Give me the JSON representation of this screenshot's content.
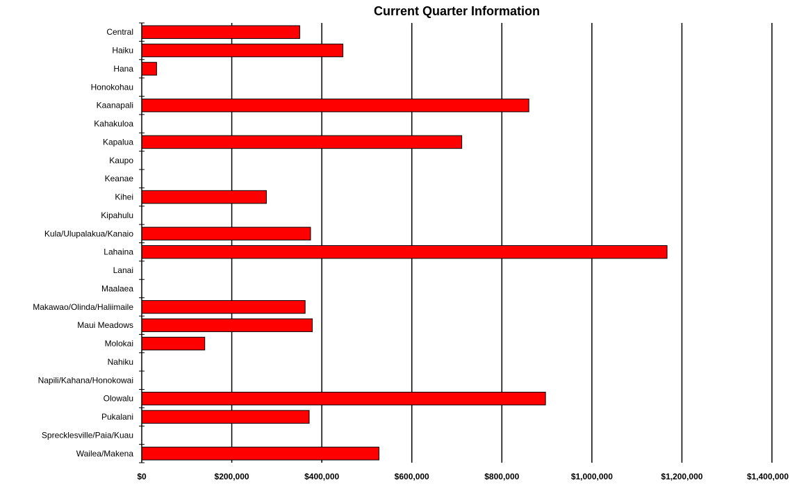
{
  "chart_data": {
    "type": "bar",
    "orientation": "horizontal",
    "title": "Current Quarter Information",
    "xlabel": "",
    "ylabel": "",
    "categories": [
      "Central",
      "Haiku",
      "Hana",
      "Honokohau",
      "Kaanapali",
      "Kahakuloa",
      "Kapalua",
      "Kaupo",
      "Keanae",
      "Kihei",
      "Kipahulu",
      "Kula/Ulupalakua/Kanaio",
      "Lahaina",
      "Lanai",
      "Maalaea",
      "Makawao/Olinda/Haliimaile",
      "Maui Meadows",
      "Molokai",
      "Nahiku",
      "Napili/Kahana/Honokowai",
      "Olowalu",
      "Pukalani",
      "Sprecklesville/Paia/Kuau",
      "Wailea/Makena"
    ],
    "values": [
      351000,
      447000,
      33000,
      0,
      860000,
      0,
      711000,
      0,
      0,
      277000,
      0,
      375000,
      1167000,
      0,
      0,
      363000,
      379000,
      140000,
      0,
      0,
      897000,
      372000,
      0,
      527000
    ],
    "xlim": [
      0,
      1400000
    ],
    "xticks": [
      0,
      200000,
      400000,
      600000,
      800000,
      1000000,
      1200000,
      1400000
    ],
    "xtick_labels": [
      "$0",
      "$200,000",
      "$400,000",
      "$600,000",
      "$800,000",
      "$1,000,000",
      "$1,200,000",
      "$1,400,000"
    ],
    "grid": "vertical",
    "legend": "none",
    "colors": {
      "bar_fill": "#ff0000",
      "bar_stroke": "#000000",
      "gridline": "#000000",
      "axis": "#000000",
      "text": "#000000",
      "background": "#ffffff"
    }
  }
}
